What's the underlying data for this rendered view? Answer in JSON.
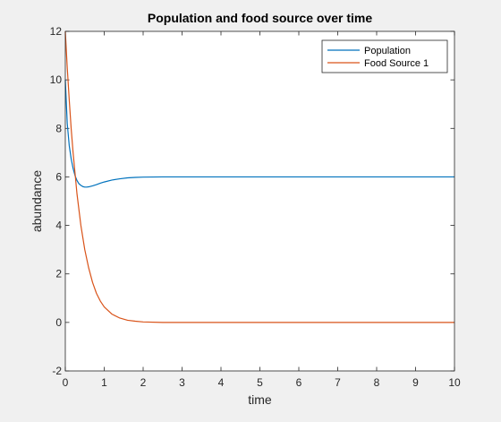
{
  "chart_data": {
    "type": "line",
    "title": "Population and food source over time",
    "xlabel": "time",
    "ylabel": "abundance",
    "xlim": [
      0,
      10
    ],
    "ylim": [
      -2,
      12
    ],
    "xticks": [
      0,
      1,
      2,
      3,
      4,
      5,
      6,
      7,
      8,
      9,
      10
    ],
    "yticks": [
      -2,
      0,
      2,
      4,
      6,
      8,
      10,
      12
    ],
    "grid": false,
    "legend_position": "top-right",
    "series": [
      {
        "name": "Population",
        "color": "#0072bd",
        "x": [
          0,
          0.05,
          0.1,
          0.15,
          0.2,
          0.25,
          0.3,
          0.35,
          0.4,
          0.45,
          0.5,
          0.55,
          0.6,
          0.7,
          0.8,
          0.9,
          1.0,
          1.2,
          1.4,
          1.6,
          1.8,
          2.0,
          2.5,
          3,
          4,
          5,
          6,
          7,
          8,
          9,
          10
        ],
        "y": [
          10.0,
          8.2,
          7.3,
          6.75,
          6.35,
          6.05,
          5.85,
          5.72,
          5.65,
          5.6,
          5.58,
          5.58,
          5.59,
          5.63,
          5.68,
          5.74,
          5.79,
          5.87,
          5.92,
          5.96,
          5.98,
          5.99,
          6.0,
          6.0,
          6.0,
          6.0,
          6.0,
          6.0,
          6.0,
          6.0,
          6.0
        ]
      },
      {
        "name": "Food Source 1",
        "color": "#d95319",
        "x": [
          0,
          0.05,
          0.1,
          0.15,
          0.2,
          0.3,
          0.4,
          0.5,
          0.6,
          0.7,
          0.8,
          0.9,
          1.0,
          1.2,
          1.4,
          1.6,
          1.8,
          2.0,
          2.5,
          3,
          4,
          5,
          6,
          7,
          8,
          9,
          10
        ],
        "y": [
          12.0,
          10.5,
          9.2,
          8.0,
          7.0,
          5.3,
          4.0,
          3.0,
          2.25,
          1.65,
          1.2,
          0.88,
          0.64,
          0.34,
          0.18,
          0.09,
          0.05,
          0.02,
          0.0,
          0.0,
          0.0,
          0.0,
          0.0,
          0.0,
          0.0,
          0.0,
          0.0
        ]
      }
    ]
  }
}
